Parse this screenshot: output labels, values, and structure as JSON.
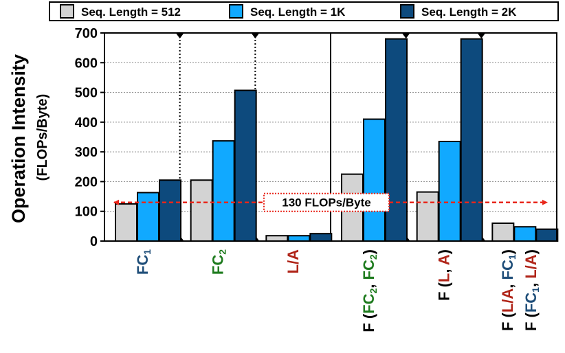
{
  "chart_data": {
    "type": "bar",
    "ylabel": "Operation Intensity",
    "ylabel_sub": "(FLOPs/Byte)",
    "ylim": [
      0,
      700
    ],
    "yticks": [
      0,
      100,
      200,
      300,
      400,
      500,
      600,
      700
    ],
    "grid": "horizontal-dotted",
    "legend_placement": "top",
    "categories": [
      {
        "id": "fc1",
        "lines": [
          [
            {
              "t": "FC",
              "c": "#1f4e79"
            },
            {
              "t": "1",
              "c": "#1f4e79",
              "sub": true
            }
          ]
        ]
      },
      {
        "id": "fc2",
        "lines": [
          [
            {
              "t": "FC",
              "c": "#1e7b1e"
            },
            {
              "t": "2",
              "c": "#1e7b1e",
              "sub": true
            }
          ]
        ]
      },
      {
        "id": "la",
        "lines": [
          [
            {
              "t": "L/A",
              "c": "#b02418"
            }
          ]
        ]
      },
      {
        "id": "f-fc2-fc2",
        "lines": [
          [
            {
              "t": "F (",
              "c": "#000000"
            },
            {
              "t": "FC",
              "c": "#1e7b1e"
            },
            {
              "t": "2",
              "c": "#1e7b1e",
              "sub": true
            },
            {
              "t": ", ",
              "c": "#000000"
            },
            {
              "t": "FC",
              "c": "#1e7b1e"
            },
            {
              "t": "2",
              "c": "#1e7b1e",
              "sub": true
            },
            {
              "t": ")",
              "c": "#000000"
            }
          ]
        ]
      },
      {
        "id": "f-l-a",
        "lines": [
          [
            {
              "t": "F (",
              "c": "#000000"
            },
            {
              "t": "L",
              "c": "#b02418"
            },
            {
              "t": ", ",
              "c": "#000000"
            },
            {
              "t": "A",
              "c": "#b02418"
            },
            {
              "t": ")",
              "c": "#000000"
            }
          ]
        ]
      },
      {
        "id": "f-mixed",
        "lines": [
          [
            {
              "t": "F (",
              "c": "#000000"
            },
            {
              "t": "L/A",
              "c": "#b02418"
            },
            {
              "t": ", ",
              "c": "#000000"
            },
            {
              "t": "FC",
              "c": "#1f4e79"
            },
            {
              "t": "1",
              "c": "#1f4e79",
              "sub": true
            },
            {
              "t": ")",
              "c": "#000000"
            }
          ],
          [
            {
              "t": "F (",
              "c": "#000000"
            },
            {
              "t": "FC",
              "c": "#1f4e79"
            },
            {
              "t": "1",
              "c": "#1f4e79",
              "sub": true
            },
            {
              "t": ", ",
              "c": "#000000"
            },
            {
              "t": "L/A",
              "c": "#b02418"
            },
            {
              "t": ")",
              "c": "#000000"
            }
          ]
        ]
      }
    ],
    "series": [
      {
        "name": "Seq. Length = 512",
        "color": "#d3d3d3",
        "values": [
          125,
          205,
          18,
          225,
          165,
          60
        ]
      },
      {
        "name": "Seq. Length = 1K",
        "color": "#11a9ff",
        "values": [
          163,
          337,
          18,
          410,
          335,
          48
        ]
      },
      {
        "name": "Seq. Length = 2K",
        "color": "#0d4a7d",
        "values": [
          205,
          507,
          25,
          680,
          680,
          40
        ]
      }
    ],
    "reference_line": {
      "value": 130,
      "label": "130 FLOPs/Byte",
      "color": "#e8261a"
    }
  }
}
